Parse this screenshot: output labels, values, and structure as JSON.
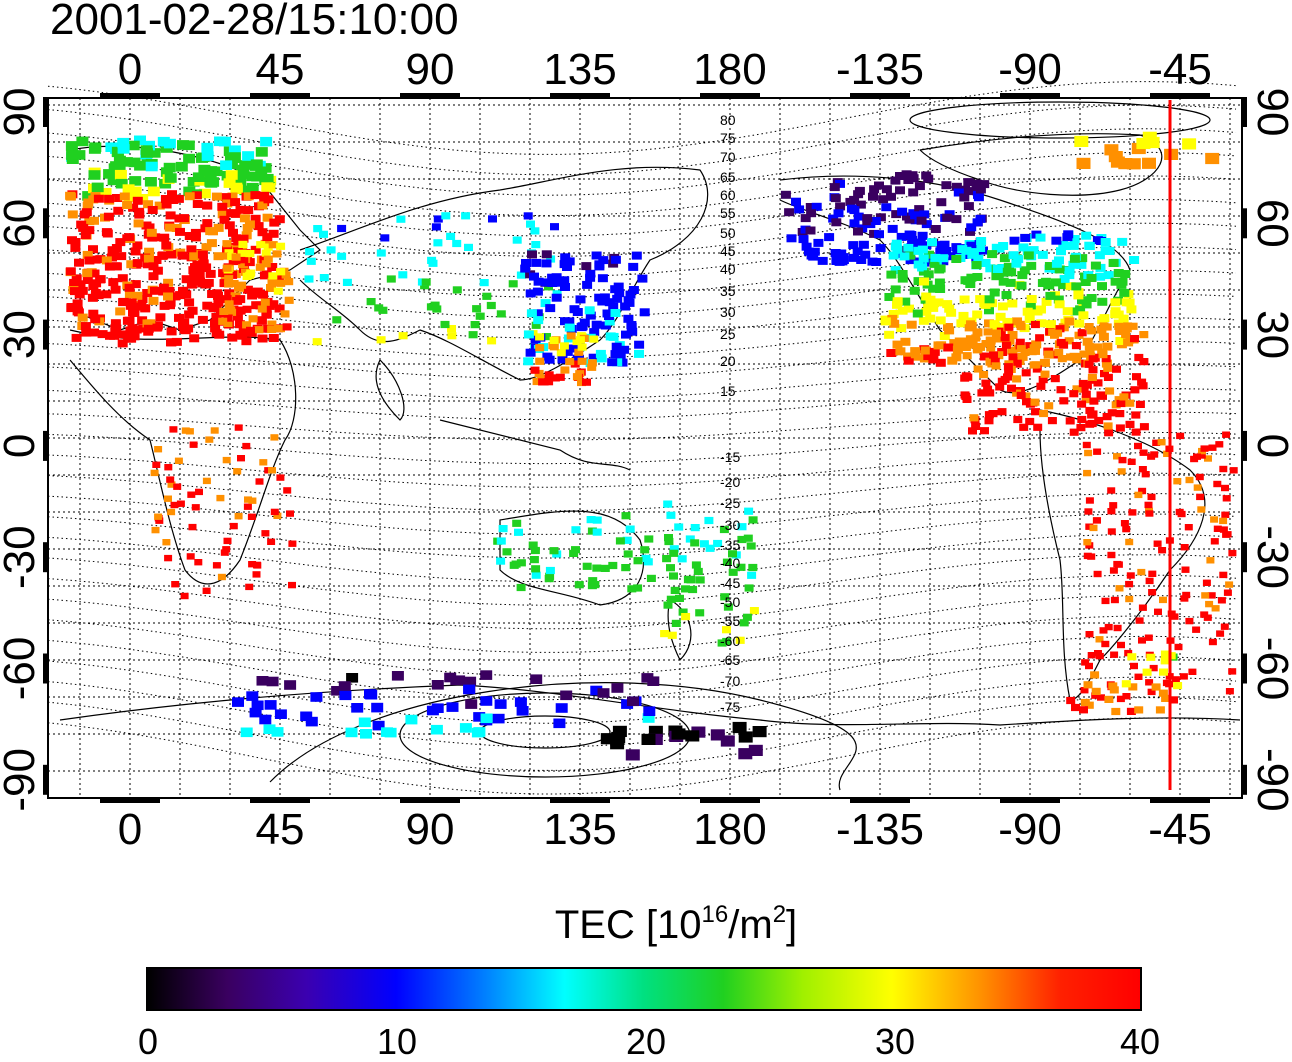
{
  "title": "2001-02-28/15:10:00",
  "map": {
    "top_lon_labels": [
      "0",
      "45",
      "90",
      "135",
      "180",
      "-135",
      "-90",
      "-45"
    ],
    "bottom_lon_labels": [
      "0",
      "45",
      "90",
      "135",
      "180",
      "-135",
      "-90",
      "-45"
    ],
    "left_lat_labels": [
      "90",
      "60",
      "30",
      "0",
      "-30",
      "-60",
      "-90"
    ],
    "right_lat_labels": [
      "90",
      "60",
      "30",
      "0",
      "-30",
      "-60",
      "-90"
    ],
    "contour_labels": [
      "80",
      "75",
      "70",
      "65",
      "60",
      "55",
      "50",
      "45",
      "40",
      "35",
      "30",
      "25",
      "20",
      "15",
      "-15",
      "-20",
      "-25",
      "-30",
      "-35",
      "-40",
      "-45",
      "-50",
      "-55",
      "-60",
      "-65",
      "-70",
      "-75"
    ],
    "marker_line_color": "#ff0000"
  },
  "colorbar": {
    "label_prefix": "TEC  [10",
    "label_exp1": "16",
    "label_mid": "/m",
    "label_exp2": "2",
    "label_suffix": "]",
    "ticks": [
      "0",
      "10",
      "20",
      "30",
      "40"
    ],
    "min": 0,
    "max": 40,
    "colors": [
      "#000000",
      "#3a0060",
      "#0000ff",
      "#00ffff",
      "#20d020",
      "#ffff00",
      "#ff9000",
      "#ff0000"
    ]
  }
}
